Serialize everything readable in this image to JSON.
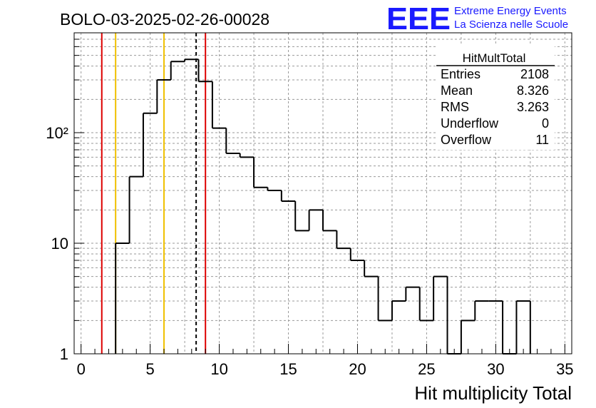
{
  "header": {
    "run_title": "BOLO-03-2025-02-26-00028",
    "logo_text": "EEE",
    "org_line1": "Extreme Energy Events",
    "org_line2": "La Scienza nelle Scuole"
  },
  "stats_box": {
    "title": "HitMultTotal",
    "rows": [
      {
        "label": "Entries",
        "value": "2108"
      },
      {
        "label": "Mean",
        "value": "8.326"
      },
      {
        "label": "RMS",
        "value": "3.263"
      },
      {
        "label": "Underflow",
        "value": "0"
      },
      {
        "label": "Overflow",
        "value": "11"
      }
    ]
  },
  "colors": {
    "histogram": "#000000",
    "red_lines": "#dd0000",
    "yellow_lines": "#f0c000",
    "mean_line": "#000000",
    "grid": "#9a9a9a",
    "logo": "#1a1aff"
  },
  "chart_data": {
    "type": "histogram",
    "xlabel": "Hit multiplicity Total",
    "ylabel": "",
    "xlim": [
      -0.5,
      35.5
    ],
    "ylim": [
      1,
      800
    ],
    "y_scale": "log",
    "grid": true,
    "x_ticks": [
      0,
      5,
      10,
      15,
      20,
      25,
      30,
      35
    ],
    "x_tick_labels": [
      "0",
      "5",
      "10",
      "15",
      "20",
      "25",
      "30",
      "35"
    ],
    "y_ticks": [
      1,
      10,
      100
    ],
    "y_tick_labels": [
      "1",
      "10",
      "10²"
    ],
    "bin_width": 1,
    "bin_edges_start": 2.5,
    "counts": [
      10,
      40,
      150,
      300,
      440,
      460,
      290,
      110,
      65,
      60,
      32,
      30,
      24,
      13,
      20,
      13,
      9,
      7,
      5,
      2,
      3,
      4,
      2,
      5,
      0,
      2,
      3,
      3,
      0,
      3
    ],
    "vertical_lines": [
      {
        "x": 1.5,
        "color": "#dd0000",
        "style": "solid"
      },
      {
        "x": 2.5,
        "color": "#f0c000",
        "style": "solid"
      },
      {
        "x": 6.0,
        "color": "#f0c000",
        "style": "solid"
      },
      {
        "x": 8.326,
        "color": "#000000",
        "style": "dashed"
      },
      {
        "x": 9.0,
        "color": "#dd0000",
        "style": "solid"
      }
    ]
  }
}
